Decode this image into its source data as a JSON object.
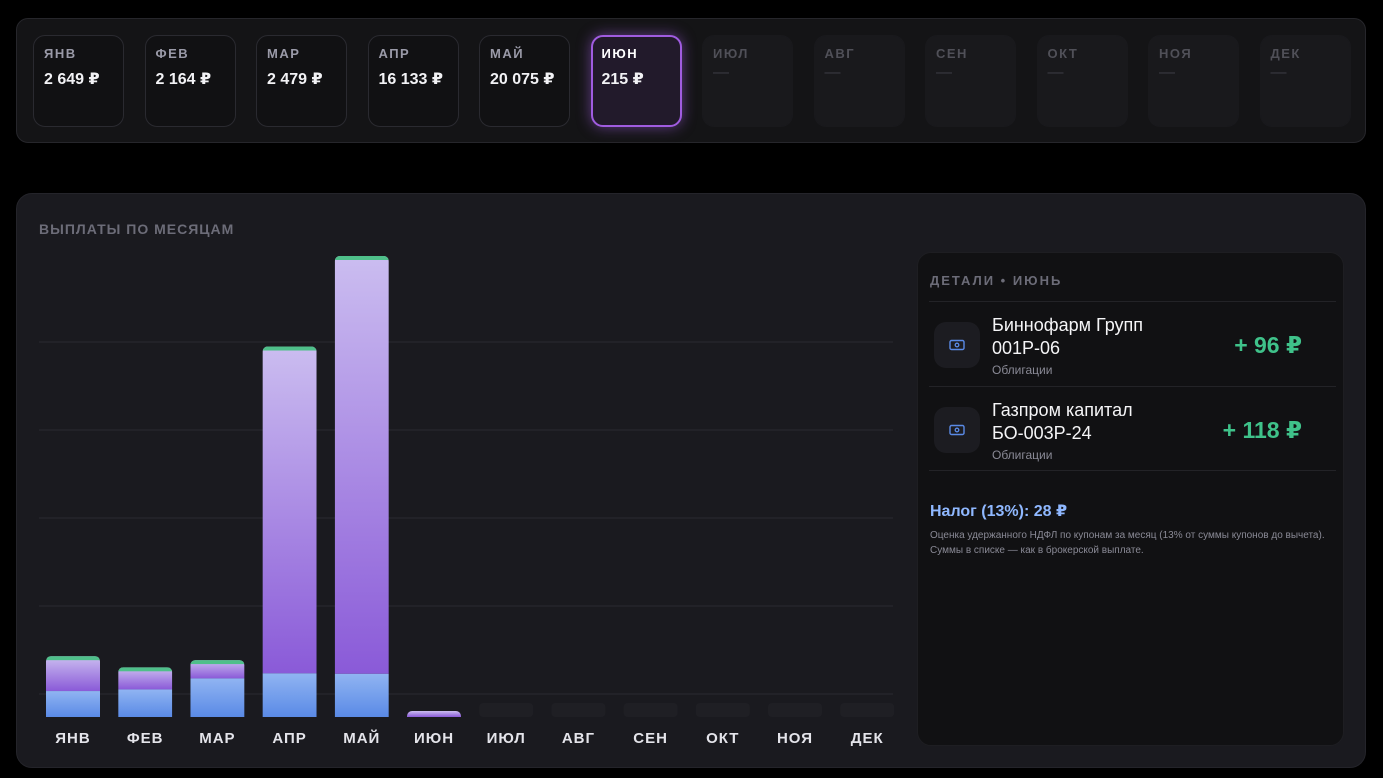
{
  "months": [
    {
      "label": "ЯНВ",
      "value": "2 649 ₽",
      "state": "filled"
    },
    {
      "label": "ФЕВ",
      "value": "2 164 ₽",
      "state": "filled"
    },
    {
      "label": "МАР",
      "value": "2 479 ₽",
      "state": "filled"
    },
    {
      "label": "АПР",
      "value": "16 133 ₽",
      "state": "filled"
    },
    {
      "label": "МАЙ",
      "value": "20 075 ₽",
      "state": "filled"
    },
    {
      "label": "ИЮН",
      "value": "215 ₽",
      "state": "active"
    },
    {
      "label": "ИЮЛ",
      "value": "—",
      "state": "empty"
    },
    {
      "label": "АВГ",
      "value": "—",
      "state": "empty"
    },
    {
      "label": "СЕН",
      "value": "—",
      "state": "empty"
    },
    {
      "label": "ОКТ",
      "value": "—",
      "state": "empty"
    },
    {
      "label": "НОЯ",
      "value": "—",
      "state": "empty"
    },
    {
      "label": "ДЕК",
      "value": "—",
      "state": "empty"
    }
  ],
  "chart": {
    "title": "ВЫПЛАТЫ ПО МЕСЯЦАМ"
  },
  "chart_data": {
    "type": "bar",
    "categories": [
      "ЯНВ",
      "ФЕВ",
      "МАР",
      "АПР",
      "МАЙ",
      "ИЮН",
      "ИЮЛ",
      "АВГ",
      "СЕН",
      "ОКТ",
      "НОЯ",
      "ДЕК"
    ],
    "values": [
      2649,
      2164,
      2479,
      16133,
      20075,
      215,
      0,
      0,
      0,
      0,
      0,
      0
    ],
    "series": [
      {
        "values": [
          1130,
          1200,
          1680,
          1900,
          1880,
          0,
          0,
          0,
          0,
          0,
          0,
          0
        ]
      },
      {
        "values": [
          1519,
          964,
          799,
          14233,
          18195,
          215,
          0,
          0,
          0,
          0,
          0,
          0
        ]
      }
    ],
    "ylim": [
      0,
      20075
    ],
    "grid": true,
    "colors": {
      "lower": [
        "#90b4f2",
        "#5a8ae6"
      ],
      "upper": [
        "#cbbdf0",
        "#8a5ad8"
      ],
      "cap": "#4fbf8a",
      "empty": "#1f1f24"
    }
  },
  "details": {
    "title": "ДЕТАЛИ • ИЮНЬ",
    "items": [
      {
        "name_line1": "Биннофарм Групп",
        "name_line2": "001Р-06",
        "type": "Облигации",
        "amount": "+ 96 ₽",
        "icon": "bond-icon"
      },
      {
        "name_line1": "Газпром капитал",
        "name_line2": "БО-003Р-24",
        "type": "Облигации",
        "amount": "+ 118 ₽",
        "icon": "bond-icon"
      }
    ],
    "tax": "Налог (13%): 28 ₽",
    "tax_note": "Оценка удержанного НДФЛ по купонам за месяц (13% от суммы купонов до вычета). Суммы в списке — как в брокерской выплате."
  }
}
